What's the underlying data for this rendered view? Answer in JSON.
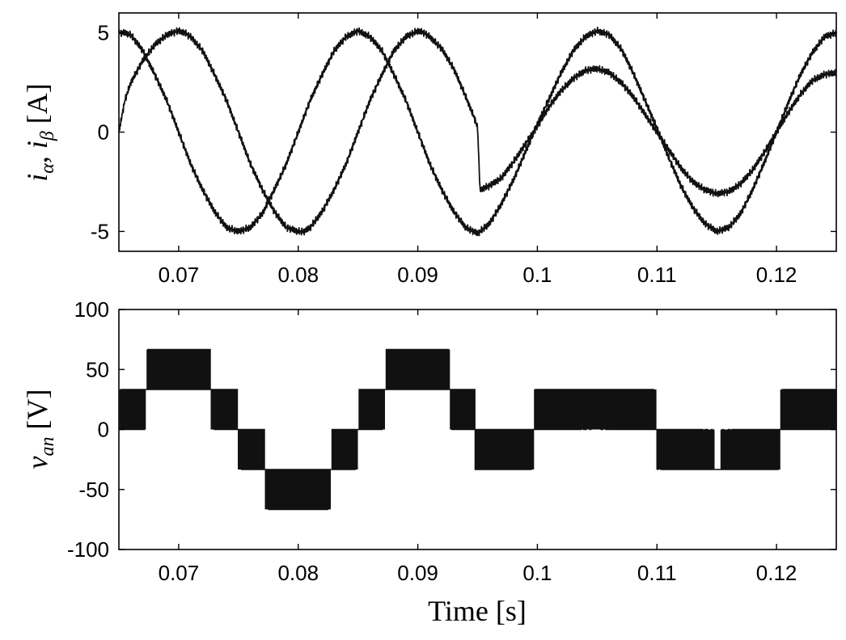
{
  "chart_data": [
    {
      "type": "line",
      "ylabel": "iα, iβ [A]",
      "ylabel_parts": {
        "base1": "i",
        "sub1": "α",
        "sep": ", ",
        "base2": "i",
        "sub2": "β",
        "unit": " [A]"
      },
      "xlabel": "",
      "xlim": [
        0.065,
        0.125
      ],
      "ylim": [
        -6,
        6
      ],
      "x_ticks": [
        0.07,
        0.08,
        0.09,
        0.1,
        0.11,
        0.12
      ],
      "x_tick_labels": [
        "0.07",
        "0.08",
        "0.09",
        "0.1",
        "0.11",
        "0.12"
      ],
      "y_ticks": [
        -5,
        0,
        5
      ],
      "y_tick_labels": [
        "-5",
        "0",
        "5"
      ],
      "grid": false,
      "series": [
        {
          "x": [
            0.065,
            0.0655,
            0.066,
            0.067,
            0.068,
            0.069,
            0.07,
            0.0705,
            0.071,
            0.072,
            0.073,
            0.074,
            0.075,
            0.0755,
            0.076,
            0.077,
            0.078,
            0.079,
            0.08,
            0.0805,
            0.081,
            0.082,
            0.083,
            0.084,
            0.085,
            0.0855,
            0.086,
            0.087,
            0.088,
            0.089,
            0.09,
            0.0905,
            0.091,
            0.092,
            0.093,
            0.094,
            0.0948,
            0.095,
            0.0952,
            0.096,
            0.097,
            0.098,
            0.099,
            0.1,
            0.101,
            0.102,
            0.103,
            0.104,
            0.105,
            0.106,
            0.107,
            0.108,
            0.109,
            0.11,
            0.111,
            0.112,
            0.113,
            0.114,
            0.115,
            0.116,
            0.117,
            0.118,
            0.119,
            0.12,
            0.121,
            0.122,
            0.123,
            0.124,
            0.125
          ],
          "y": [
            0.0,
            1.6,
            2.5,
            3.6,
            4.4,
            4.9,
            5.1,
            5.0,
            4.8,
            4.1,
            2.9,
            1.6,
            0.0,
            -0.8,
            -1.6,
            -2.9,
            -4.0,
            -4.8,
            -5.0,
            -5.0,
            -4.8,
            -4.0,
            -2.9,
            -1.6,
            0.0,
            0.8,
            1.6,
            2.9,
            4.1,
            4.8,
            5.1,
            5.0,
            4.8,
            4.2,
            3.2,
            1.8,
            0.6,
            0.2,
            -2.9,
            -2.7,
            -2.3,
            -1.5,
            -0.6,
            0.3,
            1.3,
            2.1,
            2.7,
            3.1,
            3.2,
            3.0,
            2.5,
            1.8,
            0.9,
            0.0,
            -0.9,
            -1.8,
            -2.5,
            -2.9,
            -3.1,
            -3.0,
            -2.6,
            -1.9,
            -1.0,
            0.0,
            1.0,
            1.9,
            2.6,
            2.9,
            3.0
          ]
        },
        {
          "x": [
            0.065,
            0.0655,
            0.066,
            0.067,
            0.068,
            0.069,
            0.07,
            0.071,
            0.072,
            0.073,
            0.074,
            0.075,
            0.076,
            0.077,
            0.078,
            0.079,
            0.08,
            0.081,
            0.082,
            0.083,
            0.084,
            0.085,
            0.086,
            0.087,
            0.088,
            0.089,
            0.09,
            0.091,
            0.092,
            0.093,
            0.094,
            0.095,
            0.096,
            0.097,
            0.098,
            0.099,
            0.1,
            0.101,
            0.102,
            0.103,
            0.104,
            0.105,
            0.106,
            0.107,
            0.108,
            0.109,
            0.11,
            0.111,
            0.112,
            0.113,
            0.114,
            0.115,
            0.116,
            0.117,
            0.118,
            0.119,
            0.12,
            0.121,
            0.122,
            0.123,
            0.124,
            0.125
          ],
          "y": [
            5.0,
            5.0,
            4.9,
            4.1,
            2.9,
            1.6,
            0.0,
            -1.6,
            -2.9,
            -4.0,
            -4.8,
            -5.0,
            -4.8,
            -4.1,
            -2.9,
            -1.6,
            0.0,
            1.6,
            2.9,
            4.1,
            4.8,
            5.1,
            4.8,
            4.1,
            2.9,
            1.6,
            0.0,
            -1.6,
            -2.9,
            -4.0,
            -4.8,
            -5.1,
            -4.6,
            -3.6,
            -2.4,
            -1.0,
            0.4,
            1.7,
            3.0,
            4.1,
            4.8,
            5.1,
            4.9,
            4.2,
            3.0,
            1.6,
            0.2,
            -1.3,
            -2.7,
            -3.8,
            -4.6,
            -5.0,
            -4.8,
            -4.1,
            -2.9,
            -1.5,
            0.0,
            1.5,
            2.9,
            4.0,
            4.8,
            5.0
          ]
        }
      ]
    },
    {
      "type": "line",
      "ylabel": "van [V]",
      "ylabel_parts": {
        "base": "v",
        "sub": "an",
        "unit": " [V]"
      },
      "xlabel": "Time [s]",
      "xlim": [
        0.065,
        0.125
      ],
      "ylim": [
        -100,
        100
      ],
      "x_ticks": [
        0.07,
        0.08,
        0.09,
        0.1,
        0.11,
        0.12
      ],
      "x_tick_labels": [
        "0.07",
        "0.08",
        "0.09",
        "0.1",
        "0.11",
        "0.12"
      ],
      "y_ticks": [
        -100,
        -50,
        0,
        50,
        100
      ],
      "y_tick_labels": [
        "-100",
        "-50",
        "0",
        "50",
        "100"
      ],
      "grid": false,
      "levels": [
        -66.7,
        -33.3,
        0,
        33.3,
        66.7
      ],
      "series": [
        {
          "x": [
            0.065,
            0.066,
            0.067,
            0.068,
            0.069,
            0.07,
            0.071,
            0.072,
            0.073,
            0.074,
            0.075,
            0.076,
            0.077,
            0.078,
            0.079,
            0.08,
            0.081,
            0.082,
            0.083,
            0.084,
            0.085,
            0.086,
            0.087,
            0.088,
            0.089,
            0.09,
            0.091,
            0.092,
            0.093,
            0.094,
            0.0948,
            0.0951,
            0.096,
            0.097,
            0.098,
            0.099,
            0.1,
            0.101,
            0.102,
            0.103,
            0.104,
            0.105,
            0.106,
            0.107,
            0.108,
            0.109,
            0.11,
            0.111,
            0.112,
            0.113,
            0.114,
            0.115,
            0.116,
            0.117,
            0.118,
            0.119,
            0.12,
            0.121,
            0.122,
            0.123,
            0.124,
            0.125
          ],
          "y": [
            0,
            16,
            30,
            42,
            48,
            50,
            48,
            42,
            30,
            16,
            0,
            -16,
            -30,
            -42,
            -48,
            -50,
            -48,
            -42,
            -30,
            -16,
            0,
            16,
            30,
            42,
            48,
            50,
            48,
            42,
            30,
            16,
            3,
            -30,
            -28,
            -24,
            -16,
            -7,
            3,
            13,
            21,
            28,
            32,
            33,
            31,
            26,
            19,
            10,
            0,
            -10,
            -19,
            -26,
            -31,
            -33,
            -32,
            -28,
            -21,
            -13,
            -3,
            7,
            16,
            24,
            28,
            30
          ],
          "note_envelope": "reference"
        }
      ]
    }
  ]
}
